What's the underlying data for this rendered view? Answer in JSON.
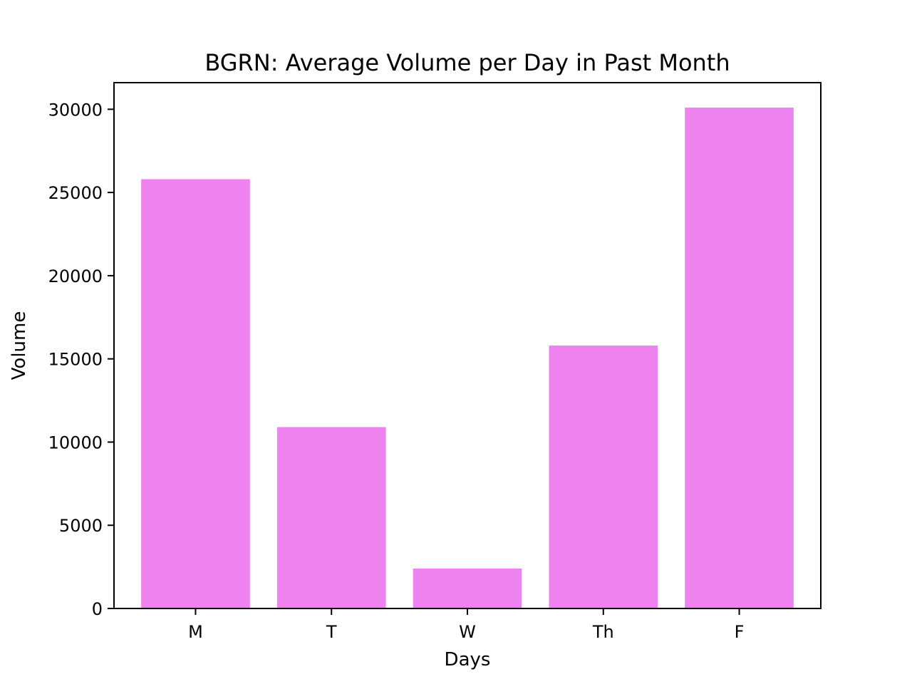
{
  "chart_data": {
    "type": "bar",
    "title": "BGRN: Average Volume per Day in Past Month",
    "xlabel": "Days",
    "ylabel": "Volume",
    "categories": [
      "M",
      "T",
      "W",
      "Th",
      "F"
    ],
    "values": [
      25800,
      10900,
      2400,
      15800,
      30100
    ],
    "ylim": [
      0,
      31600
    ],
    "yticks": [
      0,
      5000,
      10000,
      15000,
      20000,
      25000,
      30000
    ],
    "bar_color": "#ee82ee",
    "grid": false,
    "legend": "none"
  }
}
